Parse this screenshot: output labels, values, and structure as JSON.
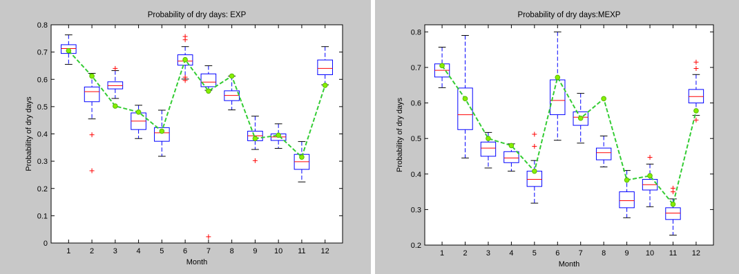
{
  "charts": [
    {
      "panel": "left"
    },
    {
      "panel": "right"
    }
  ],
  "chart_data": [
    {
      "type": "box",
      "title": "Probability of dry days: EXP",
      "xlabel": "Month",
      "ylabel": "Probability of dry days",
      "categories": [
        "1",
        "2",
        "3",
        "4",
        "5",
        "6",
        "7",
        "8",
        "9",
        "10",
        "11",
        "12"
      ],
      "ylim": [
        0,
        0.8
      ],
      "yticks": [
        0,
        0.1,
        0.2,
        0.3,
        0.4,
        0.5,
        0.6,
        0.7,
        0.8
      ],
      "ytick_labels": [
        "0",
        "0.1",
        "0.2",
        "0.3",
        "0.4",
        "0.5",
        "0.6",
        "0.7",
        "0.8"
      ],
      "boxes": [
        {
          "wlo": 0.655,
          "q1": 0.695,
          "med": 0.713,
          "q3": 0.727,
          "whi": 0.763,
          "outliers": []
        },
        {
          "wlo": 0.455,
          "q1": 0.518,
          "med": 0.555,
          "q3": 0.572,
          "whi": 0.622,
          "outliers": [
            0.397,
            0.265
          ]
        },
        {
          "wlo": 0.53,
          "q1": 0.565,
          "med": 0.577,
          "q3": 0.591,
          "whi": 0.632,
          "outliers": [
            0.64
          ]
        },
        {
          "wlo": 0.383,
          "q1": 0.416,
          "med": 0.447,
          "q3": 0.477,
          "whi": 0.505,
          "outliers": []
        },
        {
          "wlo": 0.318,
          "q1": 0.373,
          "med": 0.404,
          "q3": 0.423,
          "whi": 0.487,
          "outliers": []
        },
        {
          "wlo": 0.601,
          "q1": 0.652,
          "med": 0.667,
          "q3": 0.69,
          "whi": 0.72,
          "outliers": [
            0.757,
            0.745,
            0.608,
            0.596
          ]
        },
        {
          "wlo": 0.56,
          "q1": 0.573,
          "med": 0.59,
          "q3": 0.62,
          "whi": 0.65,
          "outliers": [
            0.023
          ]
        },
        {
          "wlo": 0.488,
          "q1": 0.522,
          "med": 0.541,
          "q3": 0.558,
          "whi": 0.612,
          "outliers": []
        },
        {
          "wlo": 0.343,
          "q1": 0.375,
          "med": 0.393,
          "q3": 0.41,
          "whi": 0.465,
          "outliers": [
            0.302
          ]
        },
        {
          "wlo": 0.347,
          "q1": 0.376,
          "med": 0.389,
          "q3": 0.4,
          "whi": 0.437,
          "outliers": []
        },
        {
          "wlo": 0.224,
          "q1": 0.27,
          "med": 0.298,
          "q3": 0.325,
          "whi": 0.372,
          "outliers": []
        },
        {
          "wlo": 0.58,
          "q1": 0.617,
          "med": 0.64,
          "q3": 0.671,
          "whi": 0.72,
          "outliers": []
        }
      ],
      "series": [
        {
          "values": [
            0.705,
            0.612,
            0.502,
            0.48,
            0.41,
            0.672,
            0.557,
            0.612,
            0.383,
            0.395,
            0.315,
            0.578
          ]
        }
      ]
    },
    {
      "type": "box",
      "title": "Probability of dry days:MEXP",
      "xlabel": "Month",
      "ylabel": "Probability of dry days",
      "categories": [
        "1",
        "2",
        "3",
        "4",
        "5",
        "6",
        "7",
        "8",
        "9",
        "10",
        "11",
        "12"
      ],
      "ylim": [
        0.2,
        0.82
      ],
      "yticks": [
        0.2,
        0.3,
        0.4,
        0.5,
        0.6,
        0.7,
        0.8
      ],
      "ytick_labels": [
        "0.2",
        "0.3",
        "0.4",
        "0.5",
        "0.6",
        "0.7",
        "0.8"
      ],
      "boxes": [
        {
          "wlo": 0.643,
          "q1": 0.673,
          "med": 0.692,
          "q3": 0.71,
          "whi": 0.757,
          "outliers": []
        },
        {
          "wlo": 0.445,
          "q1": 0.525,
          "med": 0.567,
          "q3": 0.642,
          "whi": 0.79,
          "outliers": []
        },
        {
          "wlo": 0.417,
          "q1": 0.45,
          "med": 0.473,
          "q3": 0.49,
          "whi": 0.517,
          "outliers": []
        },
        {
          "wlo": 0.408,
          "q1": 0.432,
          "med": 0.445,
          "q3": 0.463,
          "whi": 0.485,
          "outliers": []
        },
        {
          "wlo": 0.318,
          "q1": 0.365,
          "med": 0.385,
          "q3": 0.408,
          "whi": 0.438,
          "outliers": [
            0.512,
            0.478
          ]
        },
        {
          "wlo": 0.495,
          "q1": 0.567,
          "med": 0.607,
          "q3": 0.665,
          "whi": 0.8,
          "outliers": []
        },
        {
          "wlo": 0.487,
          "q1": 0.537,
          "med": 0.56,
          "q3": 0.575,
          "whi": 0.627,
          "outliers": []
        },
        {
          "wlo": 0.42,
          "q1": 0.44,
          "med": 0.46,
          "q3": 0.473,
          "whi": 0.507,
          "outliers": []
        },
        {
          "wlo": 0.277,
          "q1": 0.305,
          "med": 0.325,
          "q3": 0.35,
          "whi": 0.41,
          "outliers": []
        },
        {
          "wlo": 0.308,
          "q1": 0.355,
          "med": 0.37,
          "q3": 0.385,
          "whi": 0.428,
          "outliers": [
            0.447
          ]
        },
        {
          "wlo": 0.228,
          "q1": 0.272,
          "med": 0.29,
          "q3": 0.305,
          "whi": 0.33,
          "outliers": [
            0.36,
            0.35
          ]
        },
        {
          "wlo": 0.565,
          "q1": 0.6,
          "med": 0.618,
          "q3": 0.638,
          "whi": 0.68,
          "outliers": [
            0.715,
            0.697,
            0.552
          ]
        }
      ],
      "series": [
        {
          "values": [
            0.705,
            0.612,
            0.5,
            0.48,
            0.408,
            0.672,
            0.557,
            0.612,
            0.383,
            0.395,
            0.315,
            0.578
          ]
        }
      ]
    }
  ],
  "colors": {
    "panel_bg": "#c8c8c8",
    "plot_bg": "#ffffff",
    "box": "#0000ff",
    "median": "#ff0000",
    "outlier": "#ff0000",
    "whisker": "#0000ff",
    "line": "#33cc33",
    "marker": "#88ee00"
  }
}
